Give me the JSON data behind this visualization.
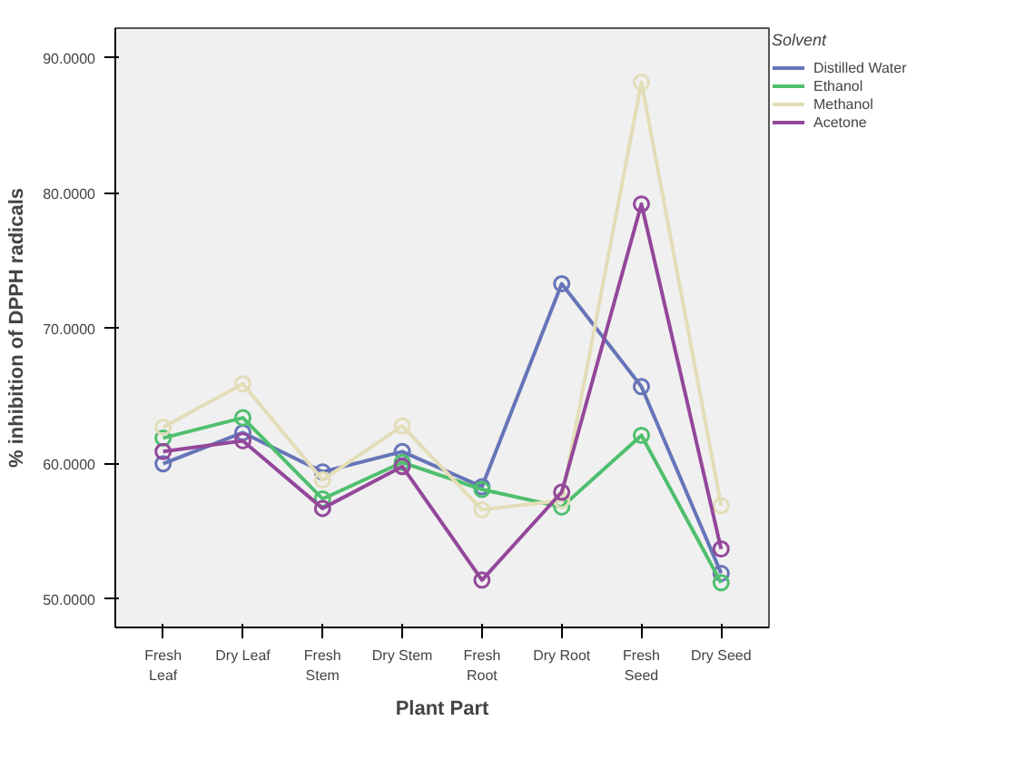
{
  "chart_data": {
    "type": "line",
    "xlabel": "Plant Part",
    "ylabel": "% inhibition of DPPH radicals",
    "legend_title": "Solvent",
    "legend": "right",
    "marker": "circle",
    "line_style": "solid",
    "grid": false,
    "categories": [
      "Fresh\nLeaf",
      "Dry Leaf",
      "Fresh\nStem",
      "Dry Stem",
      "Fresh\nRoot",
      "Dry Root",
      "Fresh\nSeed",
      "Dry Seed"
    ],
    "ylim": [
      47.9,
      92.2
    ],
    "yticks": [
      {
        "value": 50,
        "label": "50.0000"
      },
      {
        "value": 60,
        "label": "60.0000"
      },
      {
        "value": 70,
        "label": "70.0000"
      },
      {
        "value": 80,
        "label": "80.0000"
      },
      {
        "value": 90,
        "label": "90.0000"
      }
    ],
    "series": [
      {
        "name": "Distilled Water",
        "color": "#6674b8",
        "values": [
          60.0,
          62.3,
          59.4,
          60.9,
          58.3,
          73.3,
          65.7,
          51.9
        ]
      },
      {
        "name": "Ethanol",
        "color": "#4fbf6e",
        "values": [
          61.9,
          63.4,
          57.4,
          60.1,
          58.1,
          56.8,
          62.1,
          51.2
        ]
      },
      {
        "name": "Methanol",
        "color": "#e3ddb8",
        "values": [
          62.7,
          65.9,
          58.8,
          62.8,
          56.6,
          57.3,
          88.2,
          56.9
        ]
      },
      {
        "name": "Acetone",
        "color": "#93479a",
        "values": [
          60.9,
          61.7,
          56.7,
          59.8,
          51.4,
          57.9,
          79.2,
          53.7
        ]
      }
    ]
  }
}
